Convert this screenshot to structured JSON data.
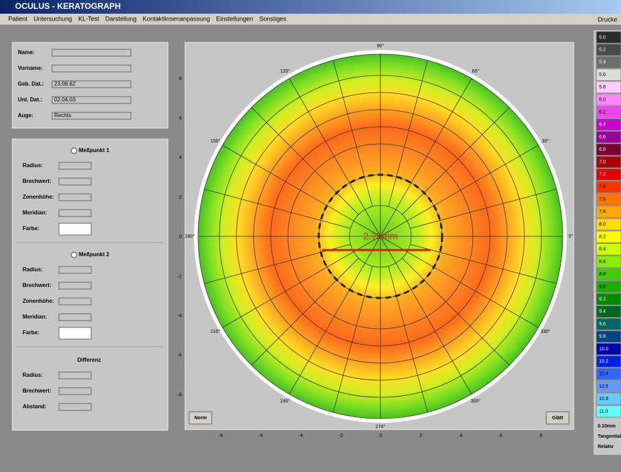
{
  "window": {
    "title": "OCULUS - KERATOGRAPH",
    "menu": [
      "Patient",
      "Untersuchung",
      "KL-Test",
      "Darstellung",
      "Kontaktlinsenanpassung",
      "Einstellungen",
      "Sonstiges"
    ],
    "right_label": "Drucke"
  },
  "patient": [
    {
      "label": "Name:"
    },
    {
      "label": "Vorname:"
    },
    {
      "label": "Geb. Dat.:",
      "value": "23.08.62"
    },
    {
      "label": "Unt. Dat.:",
      "value": "02.04.03"
    },
    {
      "label": "Auge:",
      "value": "Rechts"
    }
  ],
  "points": [
    {
      "title": "Meßpunkt 1",
      "fields": [
        "Radius:",
        "Brechwert:",
        "Zonenhöhe:",
        "Meridian:"
      ],
      "color_label": "Farbe:"
    },
    {
      "title": "Meßpunkt 2",
      "fields": [
        "Radius:",
        "Brechwert:",
        "Zonenhöhe:",
        "Meridian:"
      ],
      "color_label": "Farbe:"
    }
  ],
  "difference": {
    "title": "Differenz",
    "fields": [
      "Radius:",
      "Brechwert:",
      "Abstand:"
    ]
  },
  "map": {
    "label": "2.75mm",
    "angles": [
      "0°",
      "30°",
      "60°",
      "90°",
      "120°",
      "150°",
      "180°",
      "210°",
      "240°",
      "270°",
      "300°",
      "330°"
    ],
    "x_ticks": [
      "-8",
      "-6",
      "-4",
      "-2",
      "0",
      "2",
      "4",
      "6",
      "8"
    ],
    "y_ticks": [
      "8",
      "6",
      "4",
      "2",
      "0",
      "-2",
      "-4",
      "-6",
      "-8"
    ],
    "buttons": [
      "Norm",
      "Glätt"
    ]
  },
  "scale": {
    "entries": [
      {
        "label": "5.0",
        "color": "#2a2a2a"
      },
      {
        "label": "5.2",
        "color": "#4a4a4a"
      },
      {
        "label": "5.4",
        "color": "#6e6e6e"
      },
      {
        "label": "5.6",
        "color": "#dcdcdc"
      },
      {
        "label": "5.8",
        "color": "#ffccff"
      },
      {
        "label": "6.0",
        "color": "#ff88ff"
      },
      {
        "label": "6.2",
        "color": "#ee44ee"
      },
      {
        "label": "6.4",
        "color": "#cc00cc"
      },
      {
        "label": "6.6",
        "color": "#990099"
      },
      {
        "label": "6.8",
        "color": "#770033"
      },
      {
        "label": "7.0",
        "color": "#aa0000"
      },
      {
        "label": "7.2",
        "color": "#e00000"
      },
      {
        "label": "7.4",
        "color": "#ff3300"
      },
      {
        "label": "7.6",
        "color": "#ff7700"
      },
      {
        "label": "7.8",
        "color": "#ffaa00"
      },
      {
        "label": "8.0",
        "color": "#ffdd00"
      },
      {
        "label": "8.2",
        "color": "#ffff00"
      },
      {
        "label": "8.4",
        "color": "#ccff00"
      },
      {
        "label": "8.6",
        "color": "#88ee00"
      },
      {
        "label": "8.8",
        "color": "#44cc00"
      },
      {
        "label": "9.0",
        "color": "#22aa00"
      },
      {
        "label": "9.2",
        "color": "#008800"
      },
      {
        "label": "9.4",
        "color": "#006622"
      },
      {
        "label": "9.6",
        "color": "#006666"
      },
      {
        "label": "9.8",
        "color": "#004488"
      },
      {
        "label": "10.0",
        "color": "#0000aa"
      },
      {
        "label": "10.2",
        "color": "#0022dd"
      },
      {
        "label": "10.4",
        "color": "#3366ff"
      },
      {
        "label": "10.6",
        "color": "#6699ff"
      },
      {
        "label": "10.8",
        "color": "#66ccff"
      },
      {
        "label": "11.0",
        "color": "#66ffff"
      }
    ],
    "step": "0.10mm",
    "mode": "Tangential",
    "reference": "Relativ"
  }
}
